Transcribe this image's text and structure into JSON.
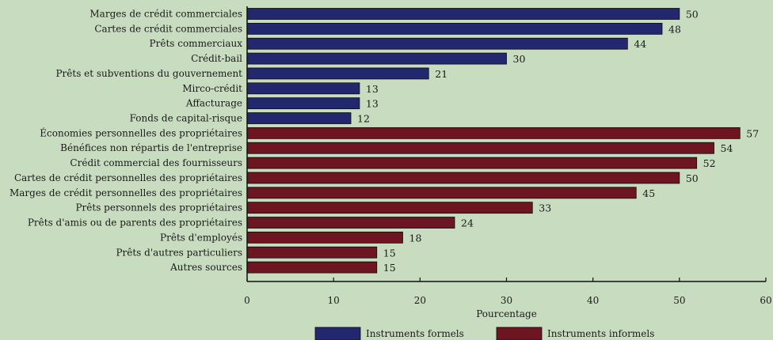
{
  "chart_data": {
    "type": "bar",
    "orientation": "horizontal",
    "xlabel": "Pourcentage",
    "xlim": [
      0,
      60
    ],
    "xticks": [
      0,
      10,
      20,
      30,
      40,
      50,
      60
    ],
    "grid": false,
    "legend_position": "bottom",
    "series": [
      {
        "name": "Instruments formels",
        "color": "#23286e",
        "categories": [
          "Marges de crédit commerciales",
          "Cartes de crédit commerciales",
          "Prêts commerciaux",
          "Crédit-bail",
          "Prêts et subventions du gouvernement",
          "Mirco-crédit",
          "Affacturage",
          "Fonds de capital-risque"
        ],
        "values": [
          50,
          48,
          44,
          30,
          21,
          13,
          13,
          12
        ]
      },
      {
        "name": "Instruments informels",
        "color": "#6d1520",
        "categories": [
          "Économies personnelles des propriétaires",
          "Bénéfices non répartis de l'entreprise",
          "Crédit commercial des fournisseurs",
          "Cartes de crédit personnelles des propriétaires",
          "Marges de crédit personnelles des propriétaires",
          "Prêts personnels des propriétaires",
          "Prêts d'amis ou de parents des propriétaires",
          "Prêts d'employés",
          "Prêts d'autres particuliers",
          "Autres sources"
        ],
        "values": [
          57,
          54,
          52,
          50,
          45,
          33,
          24,
          18,
          15,
          15
        ]
      }
    ]
  }
}
